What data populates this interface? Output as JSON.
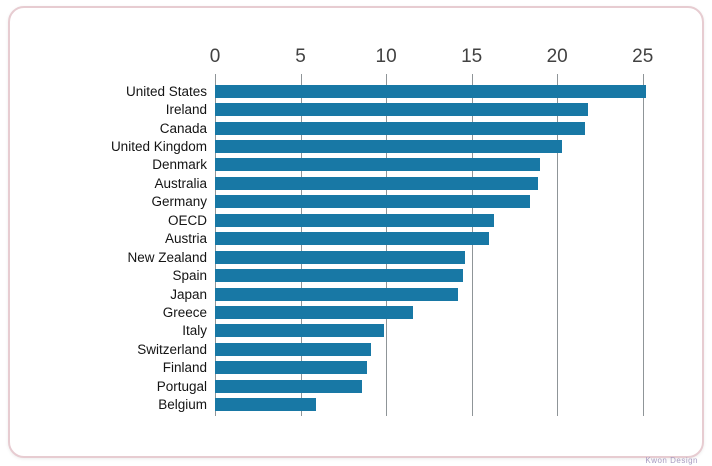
{
  "chart_data": {
    "type": "bar",
    "orientation": "horizontal",
    "title": "",
    "xlabel": "",
    "ylabel": "",
    "categories": [
      "United States",
      "Ireland",
      "Canada",
      "United Kingdom",
      "Denmark",
      "Australia",
      "Germany",
      "OECD",
      "Austria",
      "New Zealand",
      "Spain",
      "Japan",
      "Greece",
      "Italy",
      "Switzerland",
      "Finland",
      "Portugal",
      "Belgium"
    ],
    "values": [
      25.2,
      21.8,
      21.6,
      20.3,
      19.0,
      18.9,
      18.4,
      16.3,
      16.0,
      14.6,
      14.5,
      14.2,
      11.6,
      9.9,
      9.1,
      8.9,
      8.6,
      5.9
    ],
    "x_ticks": [
      0,
      5,
      10,
      15,
      20,
      25
    ],
    "xlim": [
      0,
      25.6
    ],
    "grid": true,
    "legend": false,
    "bar_color": "#1878a5",
    "gridline_color": "#8f9598",
    "tick_label_color": "#424242",
    "category_label_color": "#141414"
  },
  "watermark": "Kwon Design"
}
